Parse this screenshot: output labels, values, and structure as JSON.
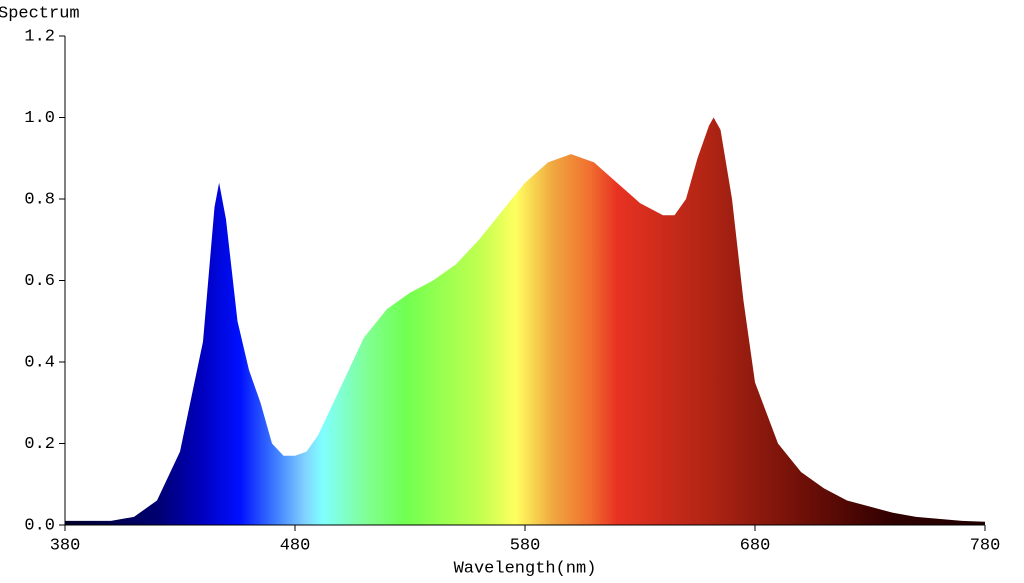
{
  "chart_data": {
    "type": "area",
    "ylabel": "Spectrum",
    "xlabel": "Wavelength(nm)",
    "x": [
      380,
      390,
      400,
      410,
      420,
      430,
      440,
      445,
      447,
      450,
      455,
      460,
      465,
      470,
      475,
      480,
      485,
      490,
      500,
      510,
      520,
      530,
      540,
      550,
      560,
      570,
      580,
      590,
      600,
      610,
      620,
      630,
      640,
      645,
      650,
      655,
      660,
      662,
      665,
      670,
      675,
      680,
      690,
      700,
      710,
      720,
      730,
      740,
      750,
      760,
      770,
      780
    ],
    "values": [
      0.01,
      0.01,
      0.01,
      0.02,
      0.06,
      0.18,
      0.45,
      0.78,
      0.84,
      0.75,
      0.5,
      0.38,
      0.3,
      0.2,
      0.17,
      0.17,
      0.18,
      0.22,
      0.34,
      0.46,
      0.53,
      0.57,
      0.6,
      0.64,
      0.7,
      0.77,
      0.84,
      0.89,
      0.91,
      0.89,
      0.84,
      0.79,
      0.76,
      0.76,
      0.8,
      0.9,
      0.98,
      1.0,
      0.97,
      0.8,
      0.55,
      0.35,
      0.2,
      0.13,
      0.09,
      0.06,
      0.045,
      0.03,
      0.02,
      0.015,
      0.01,
      0.008
    ],
    "xlim": [
      380,
      780
    ],
    "xticks": [
      380,
      480,
      580,
      680,
      780
    ],
    "ylim": [
      0,
      1.2
    ],
    "yticks": [
      {
        "value": 0,
        "label": "0.0"
      },
      0.2,
      0.4,
      0.6,
      0.8,
      {
        "value": 1,
        "label": "1.0"
      },
      1.2
    ],
    "grid": false
  }
}
